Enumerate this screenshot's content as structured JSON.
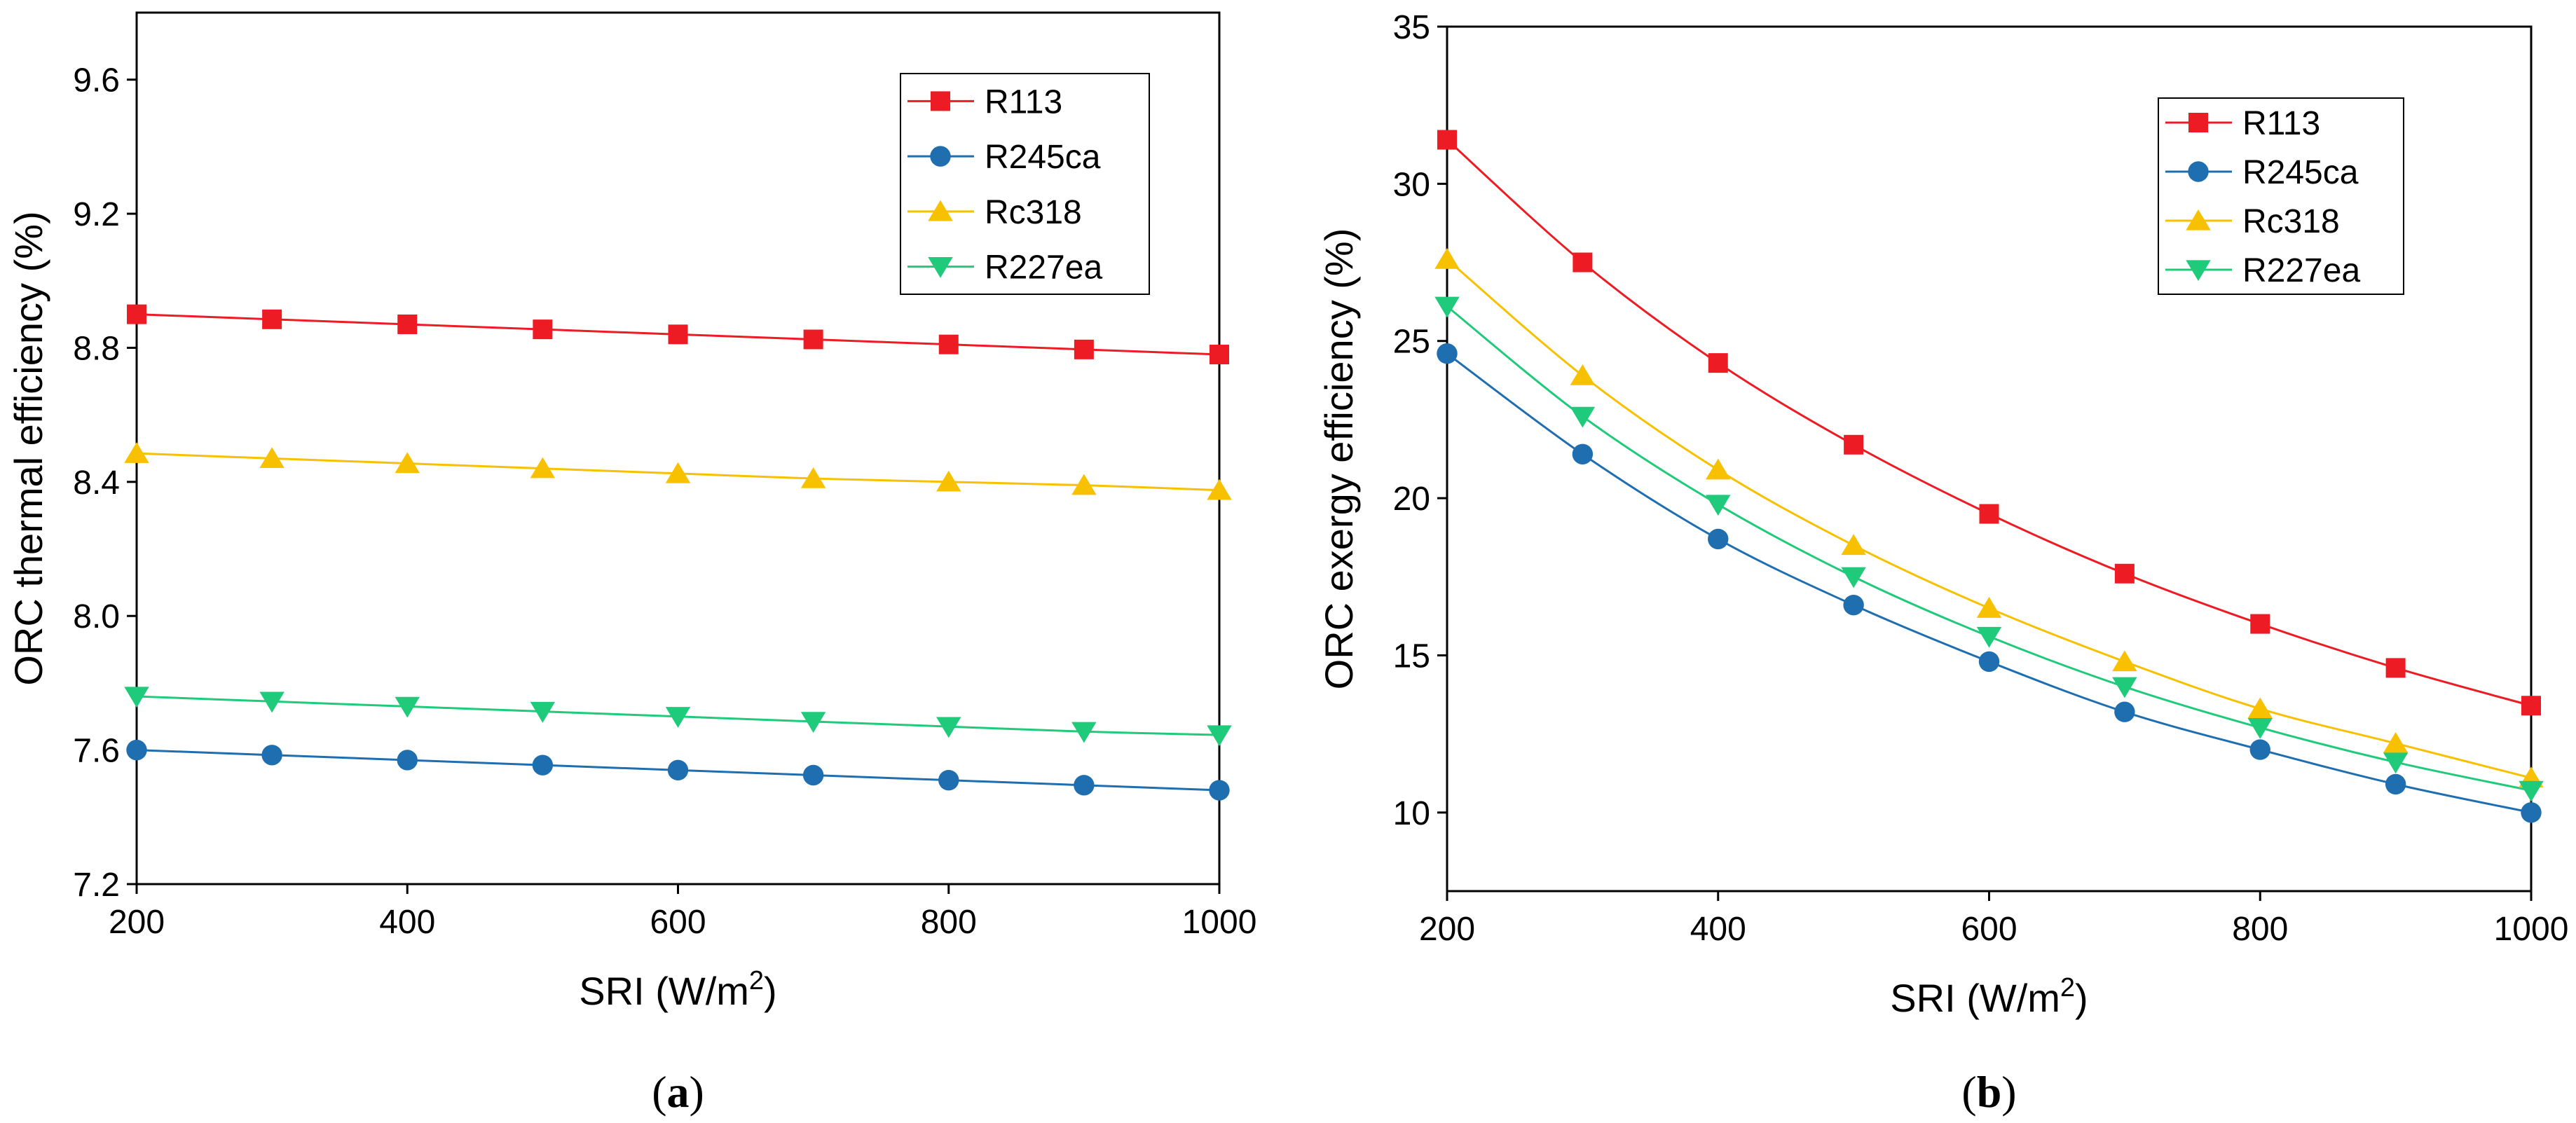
{
  "colors": {
    "R113": "#ed1c24",
    "R245ca": "#1e6eb0",
    "Rc318": "#f7c100",
    "R227ea": "#1fcb7a",
    "axis": "#000000"
  },
  "chart_data": [
    {
      "type": "line",
      "panel_label": "a",
      "xlabel_main": "SRI (W/m",
      "xlabel_sup": "2",
      "xlabel_close": ")",
      "ylabel": "ORC thermal efficiency (%)",
      "xlim": [
        200,
        1000
      ],
      "ylim": [
        7.2,
        9.8
      ],
      "x": [
        200,
        300,
        400,
        500,
        600,
        700,
        800,
        900,
        1000
      ],
      "xticks": [
        200,
        400,
        600,
        800,
        1000
      ],
      "xtick_labels": [
        "200",
        "400",
        "600",
        "800",
        "1000"
      ],
      "yticks": [
        7.2,
        7.6,
        8.0,
        8.4,
        8.8,
        9.2,
        9.6
      ],
      "ytick_labels": [
        "7.2",
        "7.6",
        "8.0",
        "8.4",
        "8.8",
        "9.2",
        "9.6"
      ],
      "legend_position": "top-right",
      "series": [
        {
          "name": "R113",
          "marker": "square",
          "values": [
            8.9,
            8.885,
            8.87,
            8.855,
            8.84,
            8.825,
            8.81,
            8.795,
            8.78
          ]
        },
        {
          "name": "R245ca",
          "marker": "circle",
          "values": [
            7.6,
            7.585,
            7.57,
            7.555,
            7.54,
            7.525,
            7.51,
            7.495,
            7.48
          ]
        },
        {
          "name": "Rc318",
          "marker": "triangle-up",
          "values": [
            8.485,
            8.47,
            8.455,
            8.44,
            8.425,
            8.41,
            8.4,
            8.39,
            8.375
          ]
        },
        {
          "name": "R227ea",
          "marker": "triangle-down",
          "values": [
            7.76,
            7.745,
            7.73,
            7.715,
            7.7,
            7.685,
            7.67,
            7.655,
            7.645
          ]
        }
      ]
    },
    {
      "type": "line",
      "panel_label": "b",
      "xlabel_main": "SRI (W/m",
      "xlabel_sup": "2",
      "xlabel_close": ")",
      "ylabel": "ORC exergy efficiency (%)",
      "xlim": [
        200,
        1000
      ],
      "ylim": [
        7.5,
        35
      ],
      "x": [
        200,
        300,
        400,
        500,
        600,
        700,
        800,
        900,
        1000
      ],
      "xticks": [
        200,
        400,
        600,
        800,
        1000
      ],
      "xtick_labels": [
        "200",
        "400",
        "600",
        "800",
        "1000"
      ],
      "yticks": [
        10,
        15,
        20,
        25,
        30,
        35
      ],
      "ytick_labels": [
        "10",
        "15",
        "20",
        "25",
        "30",
        "35"
      ],
      "legend_position": "top-right",
      "series": [
        {
          "name": "R113",
          "marker": "square",
          "values": [
            31.4,
            27.5,
            24.3,
            21.7,
            19.5,
            17.6,
            16.0,
            14.6,
            13.4
          ]
        },
        {
          "name": "R245ca",
          "marker": "circle",
          "values": [
            24.6,
            21.4,
            18.7,
            16.6,
            14.8,
            13.2,
            12.0,
            10.9,
            10.0
          ]
        },
        {
          "name": "Rc318",
          "marker": "triangle-up",
          "values": [
            27.6,
            23.9,
            20.9,
            18.5,
            16.5,
            14.8,
            13.3,
            12.2,
            11.1
          ]
        },
        {
          "name": "R227ea",
          "marker": "triangle-down",
          "values": [
            26.1,
            22.6,
            19.8,
            17.5,
            15.6,
            14.0,
            12.7,
            11.6,
            10.7
          ]
        }
      ]
    }
  ]
}
